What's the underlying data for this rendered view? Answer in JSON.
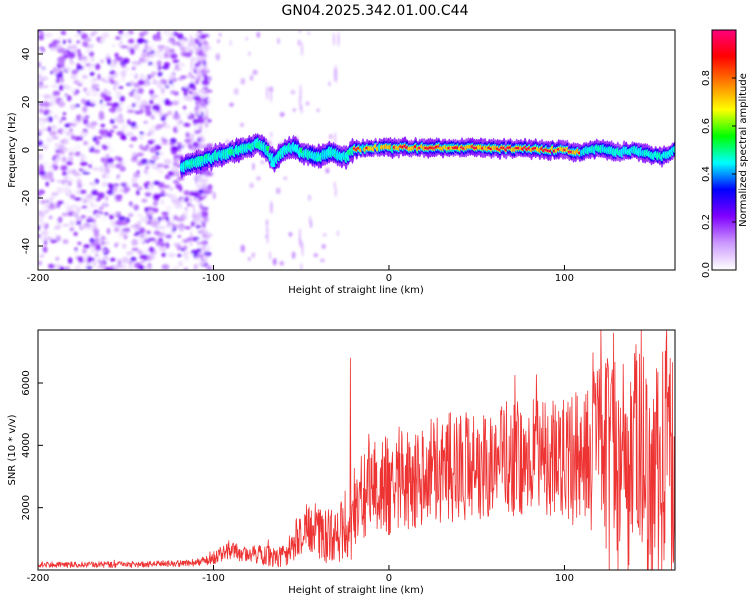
{
  "title": "GN04.2025.342.01.00.C44",
  "chart_data": [
    {
      "type": "heatmap",
      "name": "spectrogram",
      "xlabel": "Height of straight line (km)",
      "ylabel": "Frequency (Hz)",
      "xlim": [
        -200,
        163
      ],
      "ylim": [
        -50,
        50
      ],
      "xticks": [
        -200,
        -100,
        0,
        100
      ],
      "xtick_labels": [
        "-200",
        "-100",
        "0",
        "100"
      ],
      "yticks": [
        -40,
        -20,
        0,
        20,
        40
      ],
      "ytick_labels": [
        "-40",
        "-20",
        "0",
        "20",
        "40"
      ],
      "signal_start_km": -118,
      "noise_extent_km": [
        -200,
        -102
      ],
      "ridge": {
        "x": [
          -118,
          -108,
          -100,
          -90,
          -80,
          -75,
          -70,
          -65,
          -60,
          -55,
          -50,
          -45,
          -40,
          -35,
          -30,
          -25,
          -20,
          -10,
          0,
          10,
          50,
          100,
          110,
          120,
          130,
          140,
          150,
          155,
          163
        ],
        "y": [
          -7,
          -5,
          -3,
          -1,
          1,
          3,
          0,
          -5,
          0,
          1,
          -1,
          -2,
          -3,
          -1,
          -2,
          -3,
          0,
          1,
          1,
          1,
          1,
          0,
          -1,
          1,
          -1,
          0,
          -2,
          -3,
          0
        ]
      },
      "colorbar": {
        "label": "Normalized spectral amplitude",
        "range": [
          0,
          1
        ],
        "ticks": [
          0.0,
          0.2,
          0.4,
          0.6,
          0.8
        ],
        "tick_labels": [
          "0.0",
          "0.2",
          "0.4",
          "0.6",
          "0.8"
        ],
        "colors": [
          "#ffffff",
          "#cc99ff",
          "#8000ff",
          "#0000ff",
          "#00ffff",
          "#00ff00",
          "#ffff00",
          "#ff8000",
          "#ff0000",
          "#ff0080"
        ]
      }
    },
    {
      "type": "line",
      "name": "snr",
      "xlabel": "Height of straight line (km)",
      "ylabel": "SNR (10 * v/v)",
      "xlim": [
        -200,
        163
      ],
      "ylim": [
        0,
        7700
      ],
      "xticks": [
        -200,
        -100,
        0,
        100
      ],
      "xtick_labels": [
        "-200",
        "-100",
        "0",
        "100"
      ],
      "yticks": [
        2000,
        4000,
        6000
      ],
      "ytick_labels": [
        "2000",
        "4000",
        "6000"
      ],
      "color": "#ee3333",
      "envelope": {
        "x": [
          -200,
          -150,
          -110,
          -100,
          -90,
          -80,
          -70,
          -60,
          -55,
          -50,
          -45,
          -40,
          -30,
          -25,
          -22,
          -20,
          -10,
          0,
          20,
          40,
          60,
          80,
          100,
          110,
          120,
          130,
          140,
          150,
          163
        ],
        "y": [
          170,
          170,
          230,
          420,
          620,
          520,
          450,
          420,
          820,
          1200,
          1500,
          1150,
          1050,
          1450,
          1500,
          2050,
          2600,
          2800,
          3150,
          3350,
          3500,
          3600,
          3650,
          3450,
          3500,
          3300,
          3500,
          3400,
          3350
        ]
      },
      "amplitude": {
        "x": [
          -200,
          -110,
          -100,
          -60,
          -50,
          -40,
          -30,
          -20,
          0,
          50,
          100,
          110,
          120,
          130,
          150,
          163
        ],
        "y": [
          90,
          110,
          250,
          350,
          800,
          950,
          850,
          1400,
          1700,
          1800,
          1900,
          2400,
          3300,
          3700,
          3900,
          3600
        ]
      },
      "spikes": [
        {
          "x": -22,
          "y": 6800
        },
        {
          "x": 128,
          "y": 7600
        },
        {
          "x": 140,
          "y": 6950
        },
        {
          "x": 158,
          "y": 7350
        },
        {
          "x": 121,
          "y": 6500
        }
      ]
    }
  ]
}
